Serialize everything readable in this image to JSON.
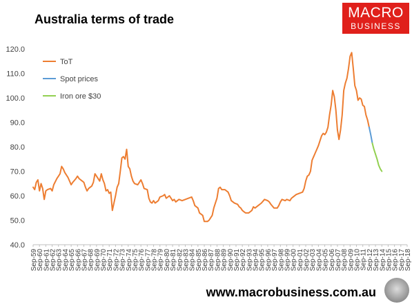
{
  "title": "Australia terms of trade",
  "logo": {
    "line1": "MACRO",
    "line2": "BUSINESS",
    "color": "#e0201b"
  },
  "footer_url": "www.macrobusiness.com.au",
  "chart_data": {
    "type": "line",
    "title": "Australia terms of trade",
    "xlabel": "",
    "ylabel": "",
    "ylim": [
      40,
      120
    ],
    "yticks": [
      "40.0",
      "50.0",
      "60.0",
      "70.0",
      "80.0",
      "90.0",
      "100.0",
      "110.0",
      "120.0"
    ],
    "xticks": [
      "Sep-59",
      "Sep-60",
      "Sep-61",
      "Sep-62",
      "Sep-63",
      "Sep-64",
      "Sep-65",
      "Sep-66",
      "Sep-67",
      "Sep-68",
      "Sep-69",
      "Sep-70",
      "Sep-71",
      "Sep-72",
      "Sep-73",
      "Sep-74",
      "Sep-75",
      "Sep-76",
      "Sep-77",
      "Sep-78",
      "Sep-79",
      "Sep-80",
      "Sep-81",
      "Sep-82",
      "Sep-83",
      "Sep-84",
      "Sep-85",
      "Sep-86",
      "Sep-87",
      "Sep-88",
      "Sep-89",
      "Sep-90",
      "Sep-91",
      "Sep-92",
      "Sep-93",
      "Sep-94",
      "Sep-95",
      "Sep-96",
      "Sep-97",
      "Sep-98",
      "Sep-99",
      "Sep-00",
      "Sep-01",
      "Sep-02",
      "Sep-03",
      "Sep-04",
      "Sep-05",
      "Sep-06",
      "Sep-07",
      "Sep-08",
      "Sep-09",
      "Sep-10",
      "Sep-11",
      "Sep-12",
      "Sep-13",
      "Sep-14",
      "Sep-15",
      "Sep-16",
      "Sep-17",
      "Sep-18"
    ],
    "x_range": [
      1959.75,
      2018.75
    ],
    "legend_position": "top-left",
    "grid": false,
    "series": [
      {
        "name": "ToT",
        "color": "#ed7d31",
        "points": [
          [
            1959.75,
            63.5
          ],
          [
            1960.0,
            62.5
          ],
          [
            1960.25,
            65.5
          ],
          [
            1960.5,
            66.5
          ],
          [
            1960.75,
            62.0
          ],
          [
            1961.0,
            65.0
          ],
          [
            1961.25,
            63.0
          ],
          [
            1961.5,
            58.5
          ],
          [
            1961.75,
            62.0
          ],
          [
            1962.0,
            62.5
          ],
          [
            1962.5,
            63.0
          ],
          [
            1962.75,
            62.0
          ],
          [
            1963.0,
            64.5
          ],
          [
            1963.5,
            67.0
          ],
          [
            1964.0,
            69.0
          ],
          [
            1964.25,
            72.0
          ],
          [
            1964.5,
            71.0
          ],
          [
            1964.75,
            69.5
          ],
          [
            1965.25,
            67.5
          ],
          [
            1965.75,
            64.5
          ],
          [
            1966.0,
            65.5
          ],
          [
            1966.5,
            67.0
          ],
          [
            1966.75,
            68.0
          ],
          [
            1967.0,
            67.0
          ],
          [
            1967.5,
            66.0
          ],
          [
            1967.75,
            65.5
          ],
          [
            1968.0,
            63.5
          ],
          [
            1968.25,
            62.0
          ],
          [
            1968.5,
            63.0
          ],
          [
            1969.0,
            64.0
          ],
          [
            1969.25,
            65.5
          ],
          [
            1969.5,
            69.0
          ],
          [
            1969.75,
            68.0
          ],
          [
            1970.25,
            66.0
          ],
          [
            1970.5,
            69.0
          ],
          [
            1970.75,
            66.5
          ],
          [
            1971.0,
            65.0
          ],
          [
            1971.25,
            62.0
          ],
          [
            1971.5,
            62.5
          ],
          [
            1971.75,
            61.0
          ],
          [
            1972.0,
            61.5
          ],
          [
            1972.25,
            54.0
          ],
          [
            1972.5,
            57.0
          ],
          [
            1972.75,
            60.0
          ],
          [
            1973.0,
            63.5
          ],
          [
            1973.25,
            65.0
          ],
          [
            1973.5,
            70.0
          ],
          [
            1973.75,
            75.5
          ],
          [
            1974.0,
            76.0
          ],
          [
            1974.25,
            75.0
          ],
          [
            1974.5,
            79.0
          ],
          [
            1974.75,
            72.0
          ],
          [
            1975.0,
            71.0
          ],
          [
            1975.25,
            68.0
          ],
          [
            1975.5,
            66.0
          ],
          [
            1975.75,
            65.0
          ],
          [
            1976.25,
            64.5
          ],
          [
            1976.75,
            66.5
          ],
          [
            1977.0,
            65.0
          ],
          [
            1977.25,
            63.0
          ],
          [
            1977.75,
            62.5
          ],
          [
            1978.0,
            59.0
          ],
          [
            1978.25,
            57.5
          ],
          [
            1978.5,
            57.0
          ],
          [
            1978.75,
            58.0
          ],
          [
            1979.0,
            57.0
          ],
          [
            1979.5,
            58.0
          ],
          [
            1979.75,
            59.5
          ],
          [
            1980.25,
            60.0
          ],
          [
            1980.5,
            60.5
          ],
          [
            1980.75,
            59.0
          ],
          [
            1981.25,
            60.0
          ],
          [
            1981.75,
            58.0
          ],
          [
            1982.0,
            58.5
          ],
          [
            1982.25,
            57.5
          ],
          [
            1982.75,
            58.5
          ],
          [
            1983.25,
            58.0
          ],
          [
            1983.75,
            58.5
          ],
          [
            1984.25,
            59.0
          ],
          [
            1984.75,
            59.5
          ],
          [
            1985.0,
            58.0
          ],
          [
            1985.25,
            56.0
          ],
          [
            1985.75,
            55.0
          ],
          [
            1986.0,
            53.0
          ],
          [
            1986.5,
            52.0
          ],
          [
            1986.75,
            49.5
          ],
          [
            1987.25,
            49.5
          ],
          [
            1987.5,
            50.0
          ],
          [
            1988.0,
            52.0
          ],
          [
            1988.25,
            55.0
          ],
          [
            1988.5,
            57.0
          ],
          [
            1988.75,
            59.0
          ],
          [
            1989.0,
            63.0
          ],
          [
            1989.25,
            63.5
          ],
          [
            1989.5,
            62.5
          ],
          [
            1990.0,
            62.5
          ],
          [
            1990.5,
            61.5
          ],
          [
            1990.75,
            60.0
          ],
          [
            1991.0,
            58.0
          ],
          [
            1991.5,
            57.0
          ],
          [
            1992.0,
            56.5
          ],
          [
            1992.25,
            55.5
          ],
          [
            1992.5,
            55.0
          ],
          [
            1992.75,
            54.0
          ],
          [
            1993.25,
            53.0
          ],
          [
            1993.75,
            53.0
          ],
          [
            1994.0,
            53.5
          ],
          [
            1994.25,
            54.0
          ],
          [
            1994.5,
            55.5
          ],
          [
            1994.75,
            55.0
          ],
          [
            1995.25,
            56.0
          ],
          [
            1995.75,
            57.0
          ],
          [
            1996.25,
            58.5
          ],
          [
            1996.75,
            58.0
          ],
          [
            1997.0,
            57.5
          ],
          [
            1997.25,
            56.5
          ],
          [
            1997.75,
            55.0
          ],
          [
            1998.25,
            55.0
          ],
          [
            1998.5,
            56.0
          ],
          [
            1998.75,
            57.5
          ],
          [
            1999.0,
            58.5
          ],
          [
            1999.5,
            58.0
          ],
          [
            1999.75,
            58.5
          ],
          [
            2000.25,
            58.0
          ],
          [
            2000.5,
            59.0
          ],
          [
            2000.75,
            59.5
          ],
          [
            2001.25,
            60.5
          ],
          [
            2001.75,
            61.0
          ],
          [
            2002.25,
            61.5
          ],
          [
            2002.5,
            63.0
          ],
          [
            2002.75,
            66.0
          ],
          [
            2003.0,
            68.0
          ],
          [
            2003.25,
            68.5
          ],
          [
            2003.5,
            70.0
          ],
          [
            2003.75,
            74.5
          ],
          [
            2004.0,
            76.0
          ],
          [
            2004.25,
            77.5
          ],
          [
            2004.5,
            79.0
          ],
          [
            2004.75,
            80.5
          ],
          [
            2005.0,
            82.5
          ],
          [
            2005.25,
            84.5
          ],
          [
            2005.5,
            85.5
          ],
          [
            2005.75,
            85.0
          ],
          [
            2006.0,
            86.0
          ],
          [
            2006.25,
            88.0
          ],
          [
            2006.5,
            93.0
          ],
          [
            2006.75,
            97.0
          ],
          [
            2007.0,
            103.0
          ],
          [
            2007.25,
            100.5
          ],
          [
            2007.5,
            95.0
          ],
          [
            2007.75,
            87.0
          ],
          [
            2008.0,
            83.0
          ],
          [
            2008.25,
            87.0
          ],
          [
            2008.5,
            93.0
          ],
          [
            2008.75,
            103.0
          ],
          [
            2009.0,
            106.0
          ],
          [
            2009.25,
            108.0
          ],
          [
            2009.5,
            112.0
          ],
          [
            2009.75,
            117.0
          ],
          [
            2010.0,
            118.5
          ],
          [
            2010.25,
            112.0
          ],
          [
            2010.5,
            105.0
          ],
          [
            2010.75,
            103.0
          ],
          [
            2011.0,
            99.0
          ],
          [
            2011.25,
            100.0
          ],
          [
            2011.5,
            99.5
          ],
          [
            2011.75,
            97.0
          ],
          [
            2012.0,
            96.5
          ],
          [
            2012.25,
            93.0
          ],
          [
            2012.5,
            91.0
          ],
          [
            2012.75,
            88.0
          ]
        ]
      },
      {
        "name": "Spot prices",
        "color": "#5b9bd5",
        "points": [
          [
            2012.75,
            88.0
          ],
          [
            2013.0,
            85.0
          ],
          [
            2013.25,
            81.5
          ]
        ]
      },
      {
        "name": "Iron ore $30",
        "color": "#92d050",
        "points": [
          [
            2013.25,
            81.5
          ],
          [
            2013.5,
            79.0
          ],
          [
            2013.75,
            77.0
          ],
          [
            2014.0,
            75.0
          ],
          [
            2014.25,
            72.5
          ],
          [
            2014.5,
            71.0
          ],
          [
            2014.75,
            70.0
          ]
        ]
      }
    ]
  }
}
